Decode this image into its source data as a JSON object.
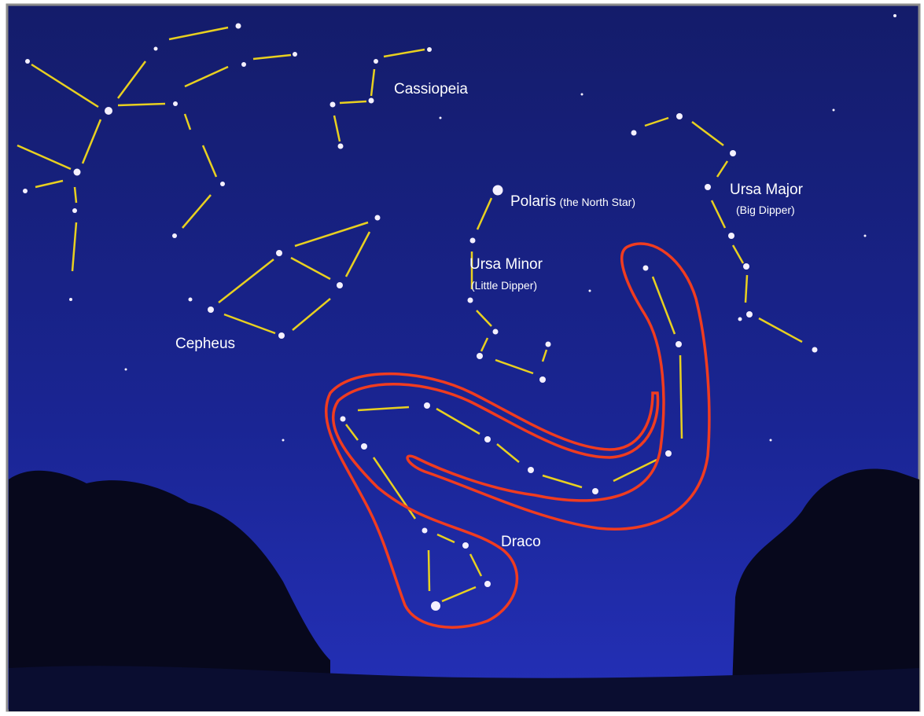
{
  "labels": {
    "cassiopeia": "Cassiopeia",
    "polaris": "Polaris",
    "polaris_note": "(the North Star)",
    "ursa_major": "Ursa Major",
    "ursa_major_note": "(Big Dipper)",
    "ursa_minor": "Ursa Minor",
    "ursa_minor_note": "(Little Dipper)",
    "cepheus": "Cepheus",
    "draco": "Draco"
  }
}
